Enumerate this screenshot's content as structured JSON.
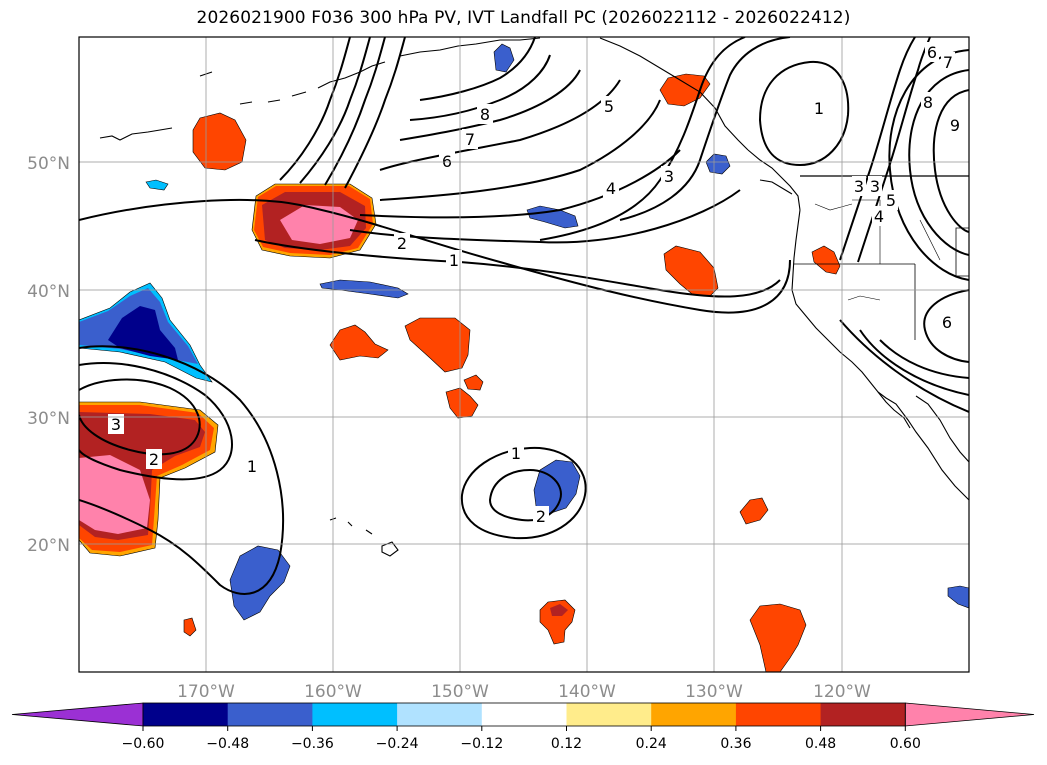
{
  "title": "2026021900 F036 300 hPa PV, IVT Landfall PC (2026022112 - 2026022412)",
  "lon_labels": [
    "170°W",
    "160°W",
    "150°W",
    "140°W",
    "130°W",
    "120°W"
  ],
  "lat_labels": [
    "50°N",
    "40°N",
    "30°N",
    "20°N"
  ],
  "colorbar": {
    "colors": [
      "#9b30d4",
      "#00008b",
      "#3a5fcd",
      "#00bfff",
      "#b0e2ff",
      "#ffffff",
      "#ffec8b",
      "#ffa500",
      "#ff4500",
      "#b22222",
      "#ff82ab"
    ],
    "tick_labels": [
      "−0.60",
      "−0.48",
      "−0.36",
      "−0.24",
      "−0.12",
      "0.12",
      "0.24",
      "0.36",
      "0.48",
      "0.60"
    ]
  },
  "contour_labels": {
    "c1_main": "1",
    "c2_main": "2",
    "c3_mid": "3",
    "c4_mid": "4",
    "c5_mid": "5",
    "c6_mid": "6",
    "c7_mid": "7",
    "c8_top": "8",
    "c1_gulf": "1",
    "c3_coast": "3",
    "c3b_coast": "3",
    "c4_coast": "4",
    "c5_coast": "5",
    "c6_ne": "6",
    "c7_ne": "7",
    "c8_ne": "8",
    "c9_ne": "9",
    "c6_se": "6",
    "c3_west": "3",
    "c2_west": "2",
    "c1_west": "1",
    "c1_sub": "1",
    "c2_sub": "2"
  }
}
